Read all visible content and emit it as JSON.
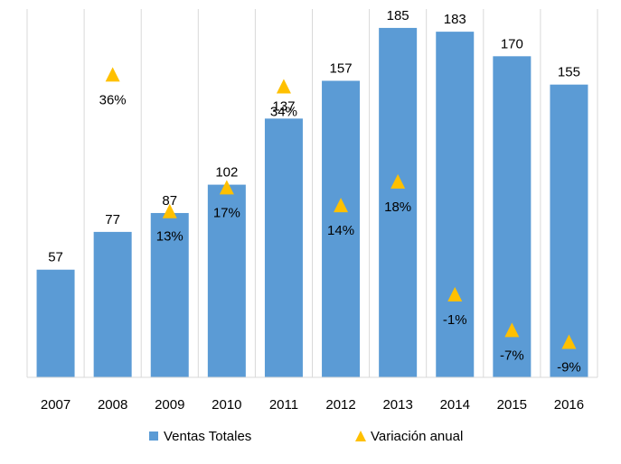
{
  "chart_data": {
    "type": "bar",
    "categories": [
      "2007",
      "2008",
      "2009",
      "2010",
      "2011",
      "2012",
      "2013",
      "2014",
      "2015",
      "2016"
    ],
    "series": [
      {
        "name": "Ventas Totales",
        "type": "bar",
        "values": [
          57,
          77,
          87,
          102,
          137,
          157,
          185,
          183,
          170,
          155
        ],
        "labels": [
          "57",
          "77",
          "87",
          "102",
          "137",
          "157",
          "185",
          "183",
          "170",
          "155"
        ],
        "color": "#5B9BD5"
      },
      {
        "name": "Variación anual",
        "type": "scatter",
        "marker": "triangle",
        "values": [
          null,
          36,
          13,
          17,
          34,
          14,
          18,
          -1,
          -7,
          -9
        ],
        "labels": [
          "",
          "36%",
          "13%",
          "17%",
          "34%",
          "14%",
          "18%",
          "-1%",
          "-7%",
          "-9%"
        ],
        "color": "#FFC000"
      }
    ],
    "ylim": [
      0,
      195
    ],
    "y2lim": [
      -15,
      47
    ],
    "grid": "vertical",
    "legend": "bottom",
    "title": "",
    "xlabel": "",
    "ylabel": ""
  }
}
